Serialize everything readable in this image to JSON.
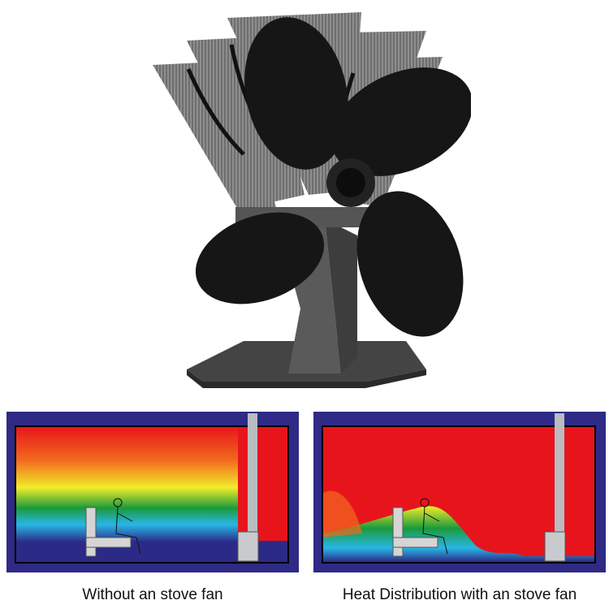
{
  "product": {
    "name": "stove-fan",
    "blade_count": 4,
    "colors": {
      "blades": "#151515",
      "heatsink": "#8a8a8a",
      "base": "#6a6a6a"
    }
  },
  "comparison": {
    "left": {
      "caption": "Without an stove fan"
    },
    "right": {
      "caption": "Heat Distribution with an stove fan"
    },
    "colors": {
      "frame": "#2e2a85",
      "hot": "#e8141c",
      "warm": "#f7a21b",
      "mid": "#f2ec2a",
      "cool": "#1a9a3c",
      "cold": "#29b6e6",
      "coldest": "#2b2a86"
    }
  }
}
